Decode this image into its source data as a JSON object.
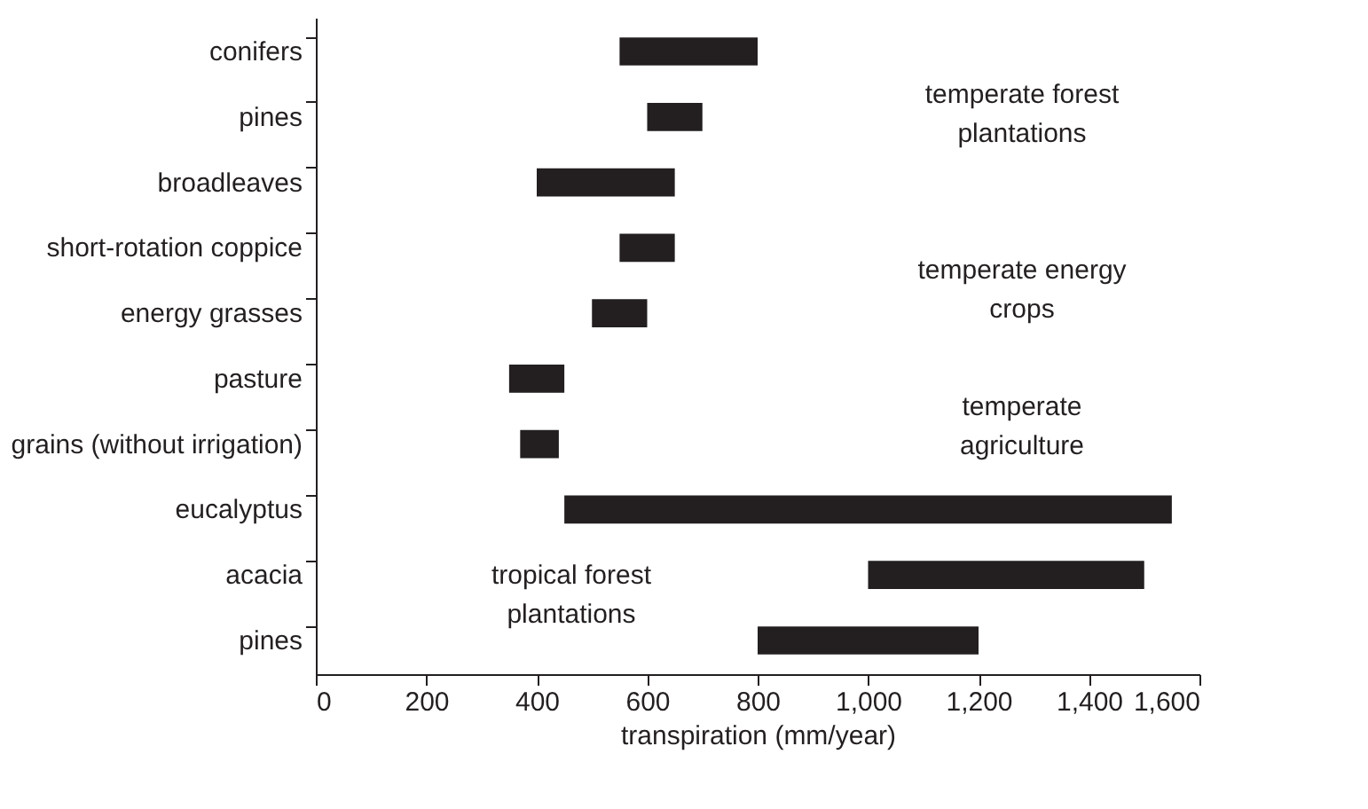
{
  "chart_data": {
    "type": "bar",
    "orientation": "horizontal",
    "xlabel": "transpiration (mm/year)",
    "categories": [
      "conifers",
      "pines",
      "broadleaves",
      "short-rotation coppice",
      "energy grasses",
      "pasture",
      "grains (without irrigation)",
      "eucalyptus",
      "acacia",
      "pines"
    ],
    "base": [
      550,
      600,
      400,
      550,
      500,
      350,
      370,
      450,
      1000,
      800
    ],
    "values": [
      250,
      100,
      250,
      100,
      100,
      100,
      70,
      1100,
      500,
      400
    ],
    "color": "#231f20",
    "xlim": [
      0,
      1600
    ],
    "xticks": [
      0,
      200,
      400,
      600,
      800,
      {
        "value": 1000,
        "label": "1,000"
      },
      {
        "value": 1200,
        "label": "1,200"
      },
      {
        "value": 1400,
        "label": "1,400"
      },
      {
        "value": 1600,
        "label": "1,600"
      }
    ],
    "grid": false,
    "annotations": [
      "temperate forest\nplantations",
      "temperate energy\ncrops",
      "temperate\nagriculture",
      "tropical forest\nplantations"
    ]
  }
}
